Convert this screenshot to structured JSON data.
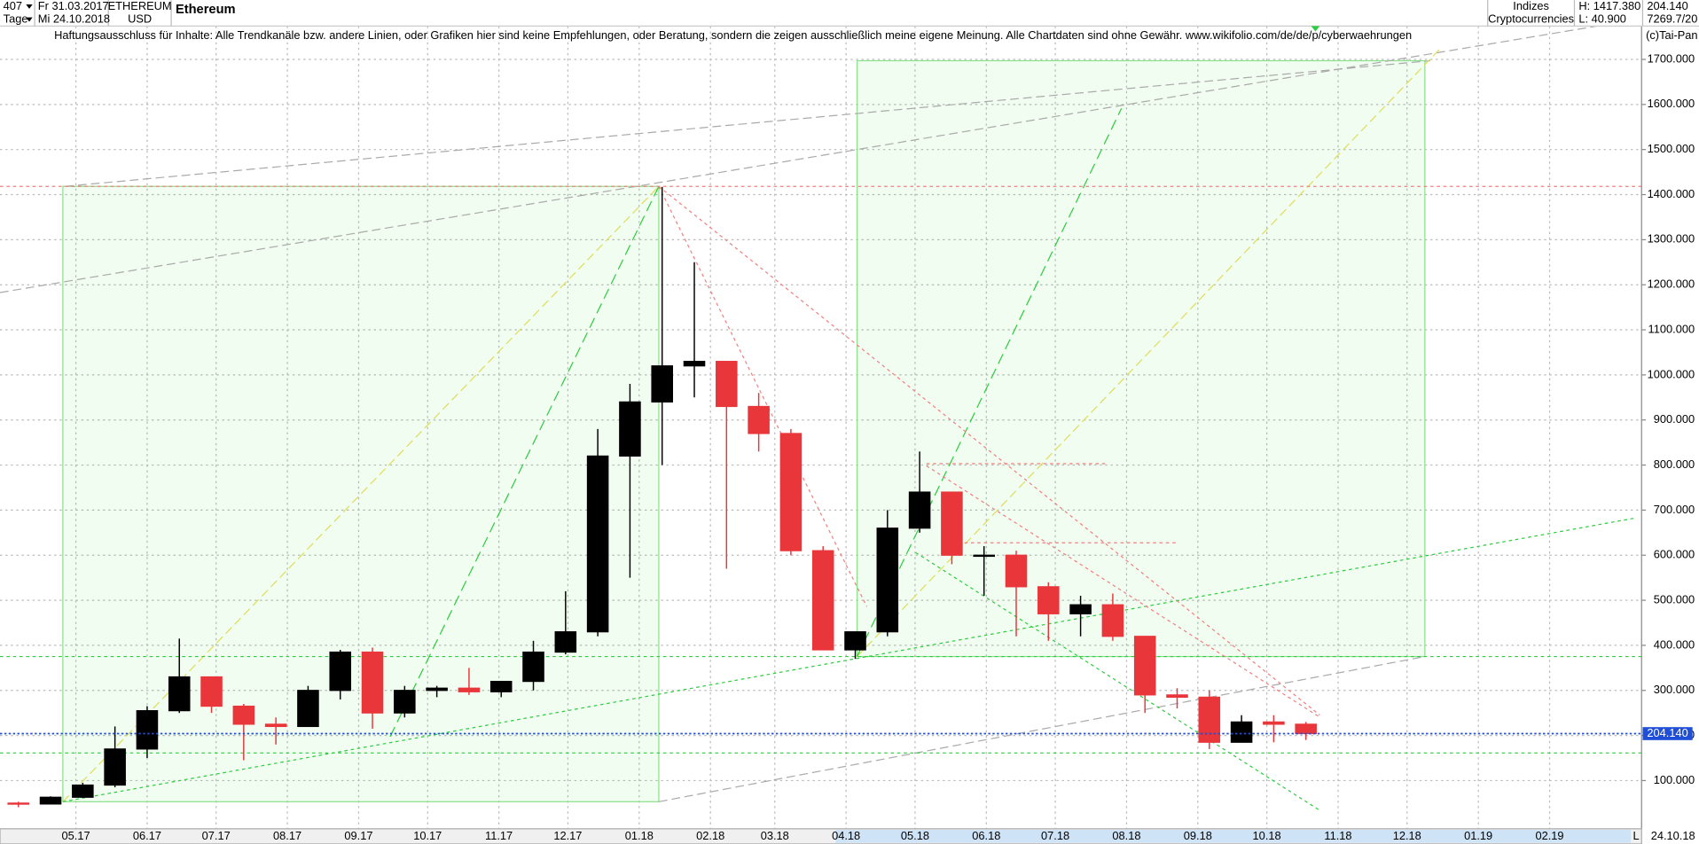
{
  "header": {
    "bars": "407",
    "period": "Tage",
    "date_from": "Fr 31.03.2017",
    "date_to": "Mi 24.10.2018",
    "symbol": "ETHEREUM",
    "currency": "USD",
    "name": "Ethereum",
    "group": "Indizes",
    "subgroup": "Cryptocurrencies",
    "high": "H: 1417.380",
    "low": "L: 40.900",
    "last": "204.140",
    "volume": "7269.7/20",
    "disclaimer": "Haftungsausschluss für Inhalte: Alle Trendkanäle bzw. andere Linien, oder Grafiken hier sind keine Empfehlungen, oder Beratung, sondern die zeigen ausschließlich meine eigene Meinung. Alle Chartdaten sind ohne Gewähr.  www.wikifolio.com/de/de/p/cyberwaehrungen",
    "copyright": "(c)Tai-Pan"
  },
  "footer": {
    "marker": "L",
    "date": "24.10.18"
  },
  "chart_data": {
    "type": "candlestick",
    "x": [
      "2017-04-06",
      "2017-04-20",
      "2017-05-04",
      "2017-05-18",
      "2017-06-01",
      "2017-06-15",
      "2017-06-29",
      "2017-07-13",
      "2017-07-27",
      "2017-08-10",
      "2017-08-24",
      "2017-09-07",
      "2017-09-21",
      "2017-10-05",
      "2017-10-19",
      "2017-11-02",
      "2017-11-16",
      "2017-11-30",
      "2017-12-14",
      "2017-12-28",
      "2018-01-11",
      "2018-01-25",
      "2018-02-08",
      "2018-02-22",
      "2018-03-08",
      "2018-03-22",
      "2018-04-05",
      "2018-04-19",
      "2018-05-03",
      "2018-05-17",
      "2018-05-31",
      "2018-06-14",
      "2018-06-28",
      "2018-07-12",
      "2018-07-26",
      "2018-08-09",
      "2018-08-23",
      "2018-09-06",
      "2018-09-20",
      "2018-10-04",
      "2018-10-18"
    ],
    "open": [
      50,
      48,
      63,
      90,
      170,
      255,
      330,
      265,
      225,
      220,
      300,
      385,
      250,
      300,
      305,
      297,
      320,
      385,
      430,
      820,
      940,
      1020,
      1030,
      930,
      870,
      610,
      390,
      430,
      660,
      740,
      600,
      600,
      530,
      470,
      490,
      420,
      290,
      285,
      185,
      230,
      225
    ],
    "high": [
      53,
      65,
      95,
      220,
      265,
      415,
      330,
      270,
      240,
      310,
      390,
      395,
      310,
      310,
      350,
      320,
      410,
      520,
      880,
      980,
      1417,
      1250,
      1030,
      960,
      880,
      620,
      430,
      700,
      830,
      740,
      620,
      610,
      540,
      510,
      515,
      420,
      305,
      300,
      245,
      245,
      230
    ],
    "low": [
      41,
      47,
      62,
      85,
      150,
      250,
      250,
      145,
      180,
      220,
      280,
      215,
      240,
      285,
      290,
      285,
      300,
      380,
      420,
      550,
      800,
      950,
      570,
      830,
      600,
      390,
      370,
      420,
      650,
      580,
      510,
      420,
      410,
      420,
      410,
      250,
      260,
      170,
      190,
      185,
      190
    ],
    "close": [
      48,
      63,
      90,
      170,
      255,
      330,
      265,
      225,
      220,
      300,
      385,
      250,
      300,
      305,
      297,
      320,
      385,
      430,
      820,
      940,
      1020,
      1030,
      930,
      870,
      610,
      390,
      430,
      660,
      740,
      600,
      600,
      530,
      470,
      490,
      420,
      290,
      285,
      185,
      230,
      225,
      204.14
    ],
    "up_color": "#000000",
    "down_color": "#e8363b",
    "xlim": [
      "2017-03-29",
      "2019-03-13"
    ],
    "xticks": [
      {
        "value": "2017-05-01",
        "label": "05.17"
      },
      {
        "value": "2017-06-01",
        "label": "06.17"
      },
      {
        "value": "2017-07-01",
        "label": "07.17"
      },
      {
        "value": "2017-08-01",
        "label": "08.17"
      },
      {
        "value": "2017-09-01",
        "label": "09.17"
      },
      {
        "value": "2017-10-01",
        "label": "10.17"
      },
      {
        "value": "2017-11-01",
        "label": "11.17"
      },
      {
        "value": "2017-12-01",
        "label": "12.17"
      },
      {
        "value": "2018-01-01",
        "label": "01.18"
      },
      {
        "value": "2018-02-01",
        "label": "02.18"
      },
      {
        "value": "2018-03-01",
        "label": "03.18"
      },
      {
        "value": "2018-04-01",
        "label": "04.18"
      },
      {
        "value": "2018-05-01",
        "label": "05.18"
      },
      {
        "value": "2018-06-01",
        "label": "06.18"
      },
      {
        "value": "2018-07-01",
        "label": "07.18"
      },
      {
        "value": "2018-08-01",
        "label": "08.18"
      },
      {
        "value": "2018-09-01",
        "label": "09.18"
      },
      {
        "value": "2018-10-01",
        "label": "10.18"
      },
      {
        "value": "2018-11-01",
        "label": "11.18"
      },
      {
        "value": "2018-12-01",
        "label": "12.18"
      },
      {
        "value": "2019-01-01",
        "label": "01.19"
      },
      {
        "value": "2019-02-01",
        "label": "02.19"
      }
    ],
    "ylim": [
      -7,
      1774
    ],
    "yticks": [
      {
        "value": 100,
        "label": "100.000"
      },
      {
        "value": 200,
        "label": "200.000"
      },
      {
        "value": 300,
        "label": "300.000"
      },
      {
        "value": 400,
        "label": "400.000"
      },
      {
        "value": 500,
        "label": "500.000"
      },
      {
        "value": 600,
        "label": "600.000"
      },
      {
        "value": 700,
        "label": "700.000"
      },
      {
        "value": 800,
        "label": "800.000"
      },
      {
        "value": 900,
        "label": "900.000"
      },
      {
        "value": 1000,
        "label": "1000.000"
      },
      {
        "value": 1100,
        "label": "1100.000"
      },
      {
        "value": 1200,
        "label": "1200.000"
      },
      {
        "value": 1300,
        "label": "1300.000"
      },
      {
        "value": 1400,
        "label": "1400.000"
      },
      {
        "value": 1500,
        "label": "1500.000"
      },
      {
        "value": 1600,
        "label": "1600.000"
      },
      {
        "value": 1700,
        "label": "1700.000"
      }
    ],
    "grid": true,
    "last_price": {
      "value": 204.14,
      "label": "204.140"
    }
  }
}
